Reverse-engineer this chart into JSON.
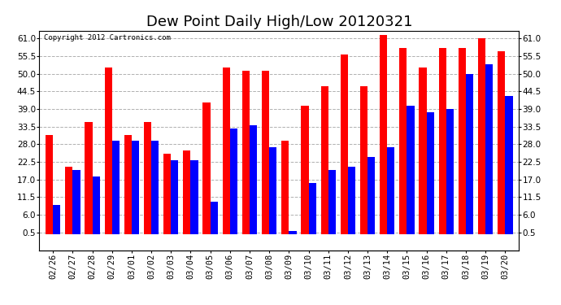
{
  "title": "Dew Point Daily High/Low 20120321",
  "copyright": "Copyright 2012 Cartronics.com",
  "categories": [
    "02/26",
    "02/27",
    "02/28",
    "02/29",
    "03/01",
    "03/02",
    "03/03",
    "03/04",
    "03/05",
    "03/06",
    "03/07",
    "03/08",
    "03/09",
    "03/10",
    "03/11",
    "03/12",
    "03/13",
    "03/14",
    "03/15",
    "03/16",
    "03/17",
    "03/18",
    "03/19",
    "03/20"
  ],
  "high_values": [
    31,
    21,
    35,
    52,
    31,
    35,
    25,
    26,
    41,
    52,
    51,
    51,
    29,
    40,
    46,
    56,
    46,
    62,
    58,
    52,
    58,
    58,
    61,
    57
  ],
  "low_values": [
    9,
    20,
    18,
    29,
    29,
    29,
    23,
    23,
    10,
    33,
    34,
    27,
    1,
    16,
    20,
    21,
    24,
    27,
    40,
    38,
    39,
    50,
    53,
    43
  ],
  "high_color": "#ff0000",
  "low_color": "#0000ff",
  "background_color": "#ffffff",
  "plot_background": "#ffffff",
  "grid_color": "#b0b0b0",
  "ylim": [
    -5.0,
    63.5
  ],
  "yticks": [
    0.5,
    6.0,
    11.5,
    17.0,
    22.5,
    28.0,
    33.5,
    39.0,
    44.5,
    50.0,
    55.5,
    61.0
  ],
  "title_fontsize": 13,
  "tick_fontsize": 7.5,
  "copyright_fontsize": 6.5,
  "bar_width": 0.38
}
